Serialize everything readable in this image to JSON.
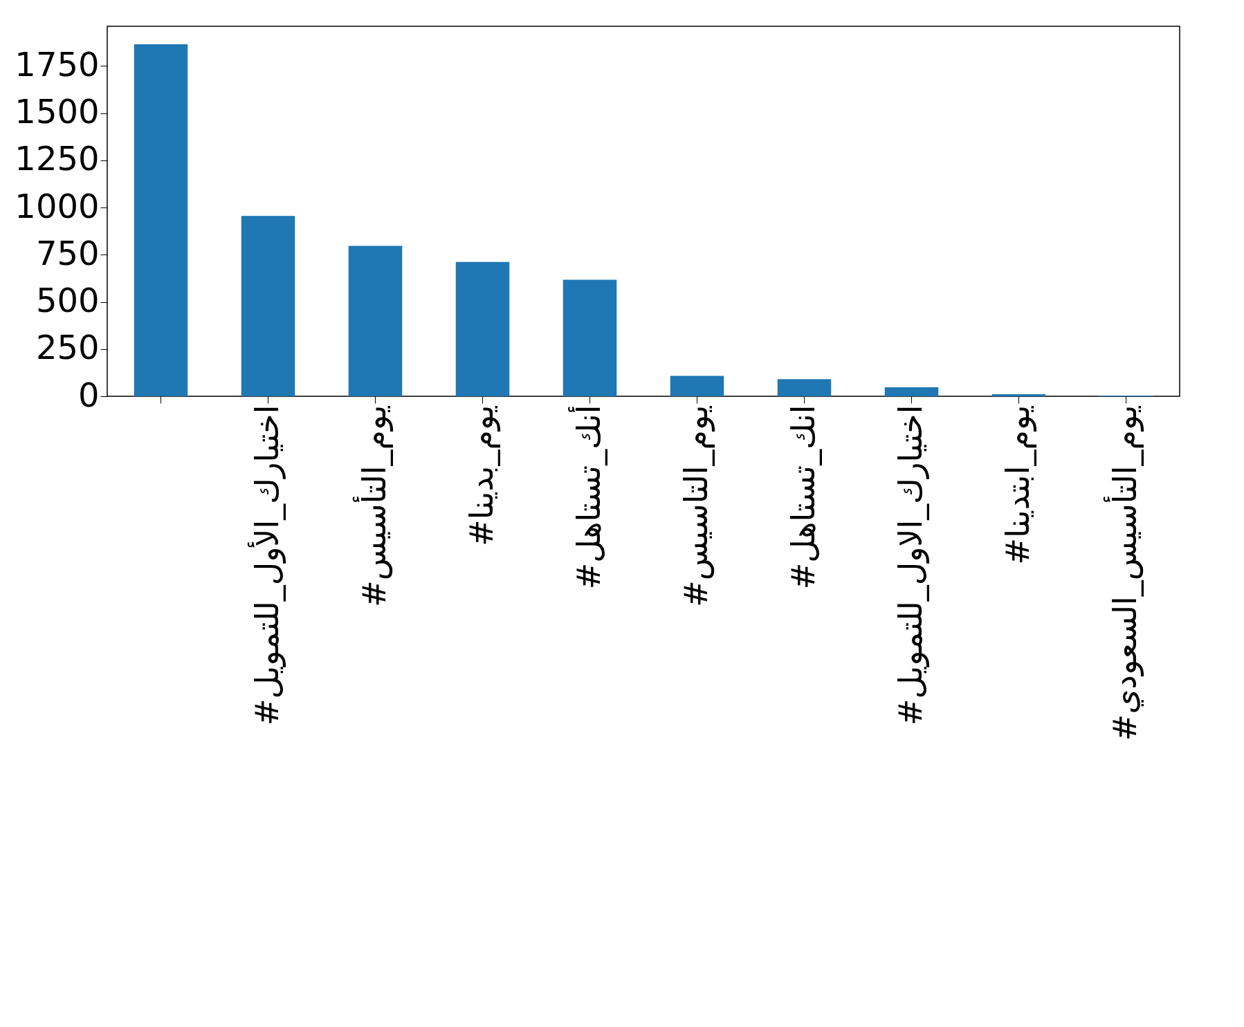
{
  "chart_data": {
    "type": "bar",
    "categories": [
      null,
      "#اختيارك_الأول_للتمويل",
      "#يوم_التأسيس",
      "#يوم_بدينا",
      "#أنك_تستاهل",
      "#يوم_التاسيس",
      "#انك_تستاهل",
      "#اختيارك_الاول_للتمويل",
      "#يوم_ابتدينا",
      "#يوم_التأسيس_السعودي"
    ],
    "values": [
      1865,
      955,
      797,
      712,
      617,
      108,
      91,
      48,
      11,
      4
    ],
    "color": "#1f77b4",
    "ylim": [
      0,
      1960
    ],
    "yticks": [
      0,
      250,
      500,
      750,
      1000,
      1250,
      1500,
      1750
    ],
    "grid": false
  }
}
